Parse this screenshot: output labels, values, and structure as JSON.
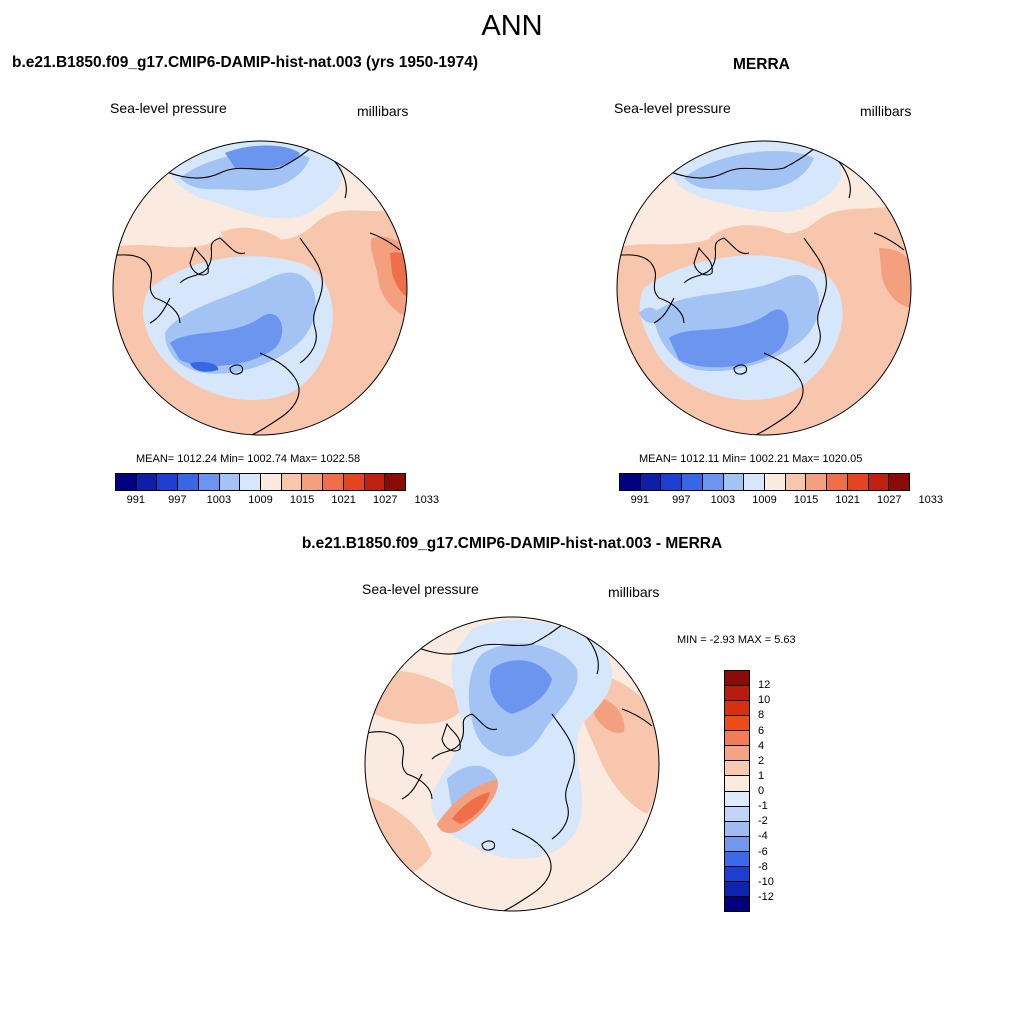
{
  "page": {
    "title": "ANN"
  },
  "panels": [
    {
      "title": "b.e21.B1850.f09_g17.CMIP6-DAMIP-hist-nat.003 (yrs 1950-1974)",
      "left_label": "Sea-level pressure",
      "right_label": "millibars",
      "stats": "MEAN= 1012.24  Min= 1002.74  Max= 1022.58"
    },
    {
      "title": "MERRA",
      "left_label": "Sea-level pressure",
      "right_label": "millibars",
      "stats": "MEAN= 1012.11  Min= 1002.21  Max= 1020.05"
    },
    {
      "title": "b.e21.B1850.f09_g17.CMIP6-DAMIP-hist-nat.003 - MERRA",
      "left_label": "Sea-level pressure",
      "right_label": "millibars",
      "stats": "MIN =  -2.93 MAX =   5.63"
    }
  ],
  "colorbar_abs": {
    "colors": [
      "#000080",
      "#0d1fa8",
      "#1c3fd1",
      "#3867e6",
      "#6b95ee",
      "#a3c3f4",
      "#d6e6fb",
      "#fbeadf",
      "#f8c6ad",
      "#f4a07f",
      "#ef6f4a",
      "#e34422",
      "#c0200f",
      "#8a0b07"
    ],
    "labels": [
      "991",
      "997",
      "1003",
      "1009",
      "1015",
      "1021",
      "1027",
      "1033"
    ],
    "label_positions": [
      1,
      3,
      5,
      7,
      9,
      11,
      13,
      15
    ]
  },
  "colorbar_diff": {
    "colors": [
      "#8a0b07",
      "#b81c0d",
      "#d8300f",
      "#ed4b17",
      "#f27c57",
      "#f4a384",
      "#f8c8b0",
      "#fbeadf",
      "#dfeafa",
      "#c0d5f6",
      "#9ebcf2",
      "#6f98ee",
      "#3b6ae8",
      "#1c3fd1",
      "#0d24b0",
      "#000080"
    ],
    "labels": [
      "12",
      "10",
      "8",
      "6",
      "4",
      "2",
      "1",
      "0",
      "-1",
      "-2",
      "-4",
      "-6",
      "-8",
      "-10",
      "-12"
    ]
  },
  "map_colors": {
    "deep_blue": "#3867e6",
    "mid_blue": "#6b95ee",
    "light_blue": "#a3c3f4",
    "pale_blue": "#d6e6fb",
    "pale_orange": "#fbeadf",
    "light_orange": "#f8c6ad",
    "orange": "#f4a07f",
    "red_orange": "#ef6f4a"
  }
}
